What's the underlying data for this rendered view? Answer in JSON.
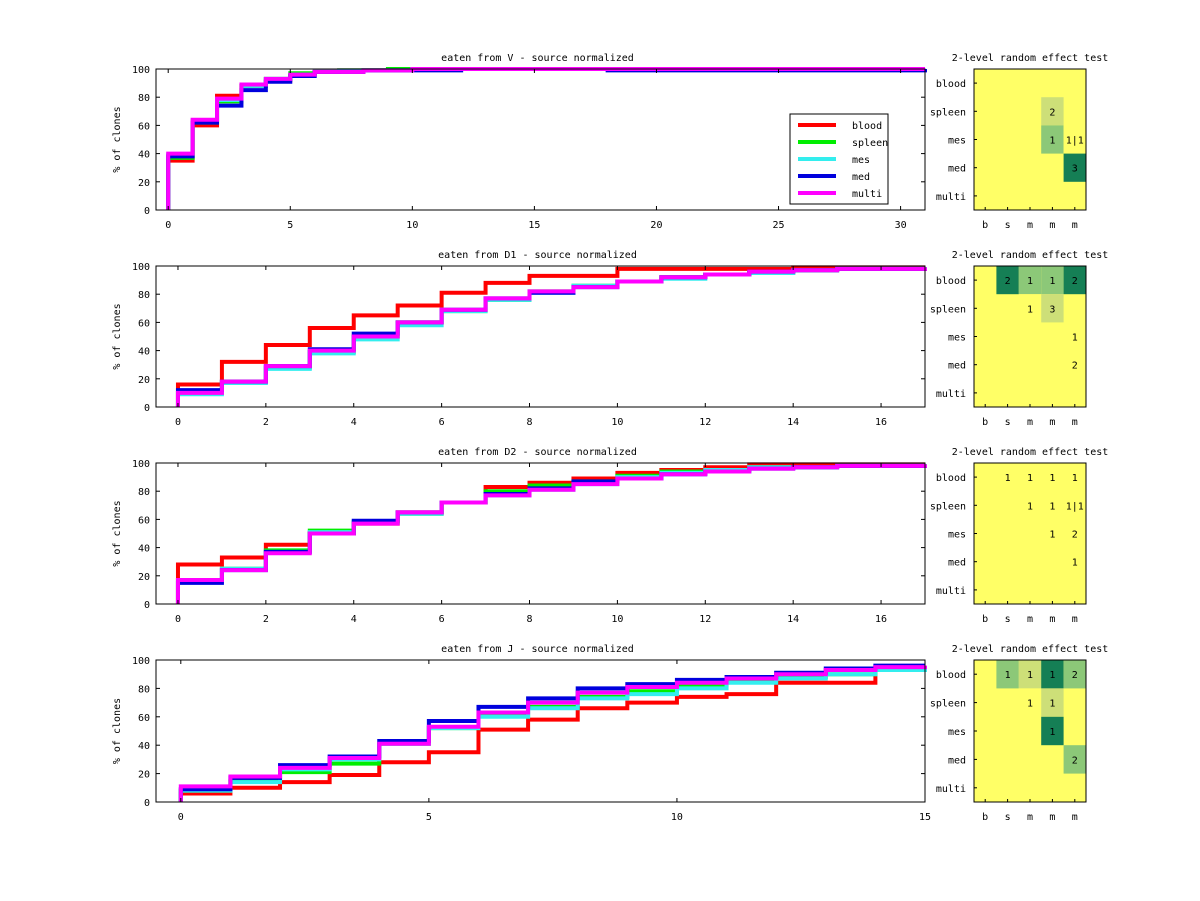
{
  "colors": {
    "blood": "#ff0000",
    "spleen": "#00ee00",
    "mes": "#33eeee",
    "med": "#0000dd",
    "multi": "#ff00ff",
    "heat_bg": "#ffff66",
    "heat_levels": [
      "#ffff66",
      "#cddf78",
      "#8cc878",
      "#157f55"
    ]
  },
  "legend": {
    "entries": [
      "blood",
      "spleen",
      "mes",
      "med",
      "multi"
    ]
  },
  "chart_data": [
    {
      "type": "line",
      "title": "eaten from V - source normalized",
      "ylabel": "% of clones",
      "xlim": [
        -0.5,
        31
      ],
      "ylim": [
        0,
        100
      ],
      "xticks": [
        0,
        5,
        10,
        15,
        20,
        25,
        30
      ],
      "yticks": [
        0,
        20,
        40,
        60,
        80,
        100
      ],
      "x": [
        0,
        1,
        2,
        3,
        4,
        5,
        6,
        7,
        8,
        9,
        10,
        11,
        12,
        14,
        16,
        18,
        20,
        31
      ],
      "series": [
        {
          "name": "blood",
          "values": [
            35,
            60,
            81,
            88,
            92,
            96,
            98,
            99,
            99,
            99,
            100,
            100,
            100,
            100,
            100,
            100,
            100,
            100
          ]
        },
        {
          "name": "spleen",
          "values": [
            37,
            62,
            77,
            88,
            93,
            97,
            98,
            99,
            99,
            100,
            100,
            100,
            100,
            100,
            100,
            100,
            100,
            100
          ]
        },
        {
          "name": "mes",
          "values": [
            39,
            63,
            78,
            88,
            93,
            96,
            98,
            99,
            99,
            99,
            100,
            100,
            100,
            100,
            100,
            100,
            100,
            100
          ]
        },
        {
          "name": "med",
          "values": [
            38,
            62,
            74,
            85,
            91,
            95,
            98,
            98,
            99,
            99,
            99,
            99,
            100,
            100,
            100,
            99,
            99,
            100
          ]
        },
        {
          "name": "multi",
          "values": [
            40,
            64,
            79,
            89,
            93,
            96,
            98,
            98,
            99,
            99,
            100,
            100,
            100,
            100,
            100,
            100,
            100,
            100
          ]
        }
      ],
      "show_legend": true,
      "legend_position": "right"
    },
    {
      "type": "line",
      "title": "eaten from D1 - source normalized",
      "ylabel": "% of clones",
      "xlim": [
        -0.5,
        17
      ],
      "ylim": [
        0,
        100
      ],
      "xticks": [
        0,
        2,
        4,
        6,
        8,
        10,
        12,
        14,
        16
      ],
      "yticks": [
        0,
        20,
        40,
        60,
        80,
        100
      ],
      "x": [
        0,
        1,
        2,
        3,
        4,
        5,
        6,
        7,
        8,
        9,
        10,
        11,
        12,
        13,
        14,
        15,
        16,
        17
      ],
      "series": [
        {
          "name": "blood",
          "values": [
            16,
            32,
            44,
            56,
            65,
            72,
            81,
            88,
            93,
            93,
            98,
            98,
            98,
            98,
            99,
            99,
            99,
            99
          ]
        },
        {
          "name": "spleen",
          "values": [
            10,
            18,
            28,
            39,
            50,
            60,
            68,
            76,
            82,
            86,
            89,
            92,
            94,
            95,
            97,
            98,
            98,
            99
          ]
        },
        {
          "name": "mes",
          "values": [
            9,
            17,
            27,
            38,
            48,
            58,
            68,
            76,
            81,
            86,
            89,
            91,
            94,
            95,
            97,
            98,
            98,
            99
          ]
        },
        {
          "name": "med",
          "values": [
            12,
            18,
            29,
            41,
            52,
            60,
            69,
            77,
            81,
            85,
            89,
            92,
            94,
            96,
            97,
            98,
            98,
            99
          ]
        },
        {
          "name": "multi",
          "values": [
            10,
            18,
            29,
            40,
            50,
            60,
            69,
            77,
            82,
            85,
            89,
            92,
            94,
            96,
            97,
            98,
            98,
            99
          ]
        }
      ],
      "show_legend": false
    },
    {
      "type": "line",
      "title": "eaten from D2 - source normalized",
      "ylabel": "% of clones",
      "xlim": [
        -0.5,
        17
      ],
      "ylim": [
        0,
        100
      ],
      "xticks": [
        0,
        2,
        4,
        6,
        8,
        10,
        12,
        14,
        16
      ],
      "yticks": [
        0,
        20,
        40,
        60,
        80,
        100
      ],
      "x": [
        0,
        1,
        2,
        3,
        4,
        5,
        6,
        7,
        8,
        9,
        10,
        11,
        12,
        13,
        14,
        15,
        16,
        17
      ],
      "series": [
        {
          "name": "blood",
          "values": [
            28,
            33,
            42,
            50,
            57,
            65,
            72,
            83,
            86,
            89,
            93,
            95,
            97,
            99,
            99,
            99,
            99,
            99
          ]
        },
        {
          "name": "spleen",
          "values": [
            17,
            25,
            38,
            52,
            58,
            64,
            72,
            80,
            84,
            87,
            91,
            94,
            95,
            97,
            97,
            98,
            98,
            99
          ]
        },
        {
          "name": "mes",
          "values": [
            16,
            25,
            37,
            51,
            58,
            64,
            72,
            77,
            81,
            85,
            90,
            93,
            95,
            97,
            97,
            98,
            98,
            99
          ]
        },
        {
          "name": "med",
          "values": [
            15,
            24,
            37,
            50,
            59,
            65,
            72,
            78,
            82,
            87,
            89,
            92,
            94,
            96,
            97,
            98,
            98,
            99
          ]
        },
        {
          "name": "multi",
          "values": [
            17,
            24,
            36,
            50,
            57,
            65,
            72,
            77,
            81,
            85,
            89,
            92,
            94,
            96,
            97,
            98,
            98,
            99
          ]
        }
      ],
      "show_legend": false
    },
    {
      "type": "line",
      "title": "eaten from J - source normalized",
      "ylabel": "% of clones",
      "xlim": [
        -0.5,
        15
      ],
      "ylim": [
        0,
        100
      ],
      "xticks": [
        0,
        5,
        10,
        15
      ],
      "yticks": [
        0,
        20,
        40,
        60,
        80,
        100
      ],
      "x": [
        0,
        1,
        2,
        3,
        4,
        5,
        6,
        7,
        8,
        9,
        10,
        11,
        12,
        13,
        14,
        15
      ],
      "series": [
        {
          "name": "blood",
          "values": [
            6,
            10,
            14,
            19,
            28,
            35,
            51,
            58,
            66,
            70,
            74,
            76,
            84,
            84,
            95,
            95
          ]
        },
        {
          "name": "spleen",
          "values": [
            8,
            15,
            21,
            27,
            41,
            52,
            61,
            67,
            74,
            78,
            82,
            85,
            88,
            90,
            94,
            95
          ]
        },
        {
          "name": "mes",
          "values": [
            8,
            14,
            23,
            30,
            41,
            52,
            60,
            66,
            73,
            76,
            80,
            84,
            87,
            90,
            93,
            95
          ]
        },
        {
          "name": "med",
          "values": [
            9,
            17,
            26,
            32,
            43,
            57,
            67,
            73,
            80,
            83,
            86,
            88,
            91,
            94,
            96,
            96
          ]
        },
        {
          "name": "multi",
          "values": [
            11,
            18,
            24,
            31,
            41,
            53,
            63,
            70,
            77,
            81,
            84,
            87,
            90,
            93,
            95,
            96
          ]
        }
      ],
      "show_legend": false
    }
  ],
  "heatmaps": [
    {
      "type": "heatmap",
      "title": "2-level random effect test",
      "row_labels": [
        "blood",
        "spleen",
        "mes",
        "med",
        "multi"
      ],
      "col_labels": [
        "b",
        "s",
        "m",
        "m",
        "m"
      ],
      "cells": [
        {
          "r": 1,
          "c": 3,
          "text": "2",
          "level": 1
        },
        {
          "r": 2,
          "c": 3,
          "text": "1",
          "level": 2
        },
        {
          "r": 2,
          "c": 4,
          "text": "1|1",
          "level": 0
        },
        {
          "r": 3,
          "c": 4,
          "text": "3",
          "level": 3
        }
      ]
    },
    {
      "type": "heatmap",
      "title": "2-level random effect test",
      "row_labels": [
        "blood",
        "spleen",
        "mes",
        "med",
        "multi"
      ],
      "col_labels": [
        "b",
        "s",
        "m",
        "m",
        "m"
      ],
      "cells": [
        {
          "r": 0,
          "c": 1,
          "text": "2",
          "level": 3
        },
        {
          "r": 0,
          "c": 2,
          "text": "1",
          "level": 2
        },
        {
          "r": 0,
          "c": 3,
          "text": "1",
          "level": 2
        },
        {
          "r": 0,
          "c": 4,
          "text": "2",
          "level": 3
        },
        {
          "r": 1,
          "c": 2,
          "text": "1",
          "level": 0
        },
        {
          "r": 1,
          "c": 3,
          "text": "3",
          "level": 1
        },
        {
          "r": 2,
          "c": 4,
          "text": "1",
          "level": 0
        },
        {
          "r": 3,
          "c": 4,
          "text": "2",
          "level": 0
        }
      ]
    },
    {
      "type": "heatmap",
      "title": "2-level random effect test",
      "row_labels": [
        "blood",
        "spleen",
        "mes",
        "med",
        "multi"
      ],
      "col_labels": [
        "b",
        "s",
        "m",
        "m",
        "m"
      ],
      "cells": [
        {
          "r": 0,
          "c": 1,
          "text": "1",
          "level": 0
        },
        {
          "r": 0,
          "c": 2,
          "text": "1",
          "level": 0
        },
        {
          "r": 0,
          "c": 3,
          "text": "1",
          "level": 0
        },
        {
          "r": 0,
          "c": 4,
          "text": "1",
          "level": 0
        },
        {
          "r": 1,
          "c": 2,
          "text": "1",
          "level": 0
        },
        {
          "r": 1,
          "c": 3,
          "text": "1",
          "level": 0
        },
        {
          "r": 1,
          "c": 4,
          "text": "1|1",
          "level": 0
        },
        {
          "r": 2,
          "c": 3,
          "text": "1",
          "level": 0
        },
        {
          "r": 2,
          "c": 4,
          "text": "2",
          "level": 0
        },
        {
          "r": 3,
          "c": 4,
          "text": "1",
          "level": 0
        }
      ]
    },
    {
      "type": "heatmap",
      "title": "2-level random effect test",
      "row_labels": [
        "blood",
        "spleen",
        "mes",
        "med",
        "multi"
      ],
      "col_labels": [
        "b",
        "s",
        "m",
        "m",
        "m"
      ],
      "cells": [
        {
          "r": 0,
          "c": 1,
          "text": "1",
          "level": 2
        },
        {
          "r": 0,
          "c": 2,
          "text": "1",
          "level": 1
        },
        {
          "r": 0,
          "c": 3,
          "text": "1",
          "level": 3
        },
        {
          "r": 0,
          "c": 4,
          "text": "2",
          "level": 2
        },
        {
          "r": 1,
          "c": 2,
          "text": "1",
          "level": 0
        },
        {
          "r": 1,
          "c": 3,
          "text": "1",
          "level": 1
        },
        {
          "r": 2,
          "c": 3,
          "text": "1",
          "level": 3
        },
        {
          "r": 3,
          "c": 4,
          "text": "2",
          "level": 2
        }
      ]
    }
  ]
}
